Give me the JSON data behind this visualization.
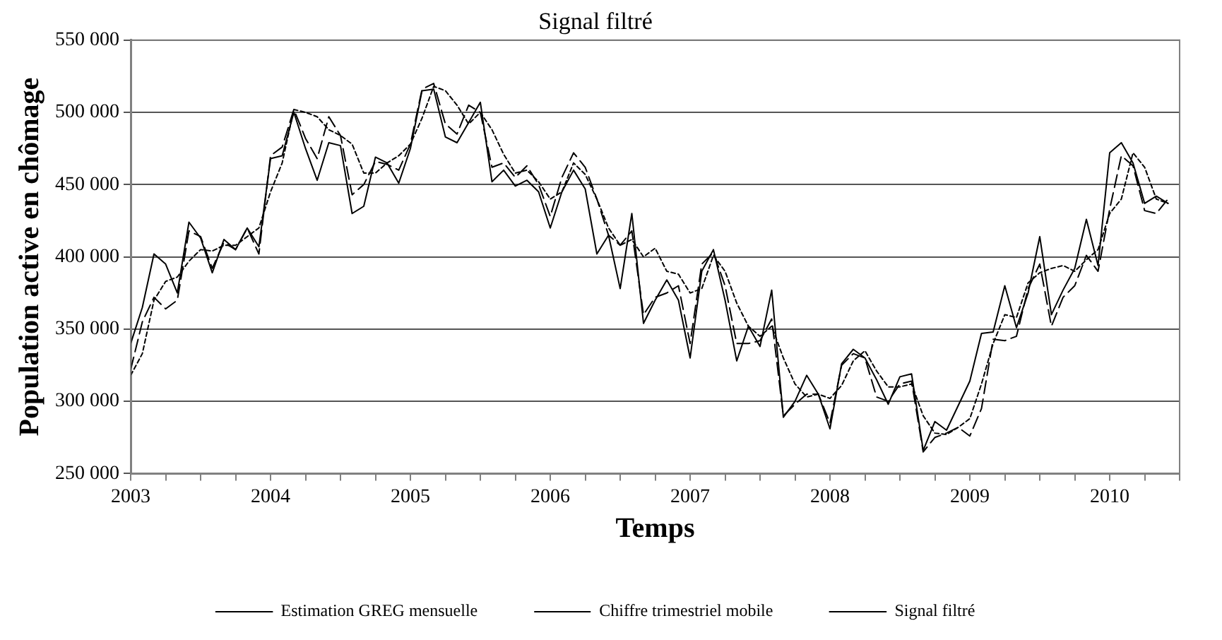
{
  "chart_data": {
    "type": "line",
    "title": "Signal filtré",
    "xlabel": "Temps",
    "ylabel": "Population active en chômage",
    "x": [
      "2003-01",
      "2003-02",
      "2003-03",
      "2003-04",
      "2003-05",
      "2003-06",
      "2003-07",
      "2003-08",
      "2003-09",
      "2003-10",
      "2003-11",
      "2003-12",
      "2004-01",
      "2004-02",
      "2004-03",
      "2004-04",
      "2004-05",
      "2004-06",
      "2004-07",
      "2004-08",
      "2004-09",
      "2004-10",
      "2004-11",
      "2004-12",
      "2005-01",
      "2005-02",
      "2005-03",
      "2005-04",
      "2005-05",
      "2005-06",
      "2005-07",
      "2005-08",
      "2005-09",
      "2005-10",
      "2005-11",
      "2005-12",
      "2006-01",
      "2006-02",
      "2006-03",
      "2006-04",
      "2006-05",
      "2006-06",
      "2006-07",
      "2006-08",
      "2006-09",
      "2006-10",
      "2006-11",
      "2006-12",
      "2007-01",
      "2007-02",
      "2007-03",
      "2007-04",
      "2007-05",
      "2007-06",
      "2007-07",
      "2007-08",
      "2007-09",
      "2007-10",
      "2007-11",
      "2007-12",
      "2008-01",
      "2008-02",
      "2008-03",
      "2008-04",
      "2008-05",
      "2008-06",
      "2008-07",
      "2008-08",
      "2008-09",
      "2008-10",
      "2008-11",
      "2008-12",
      "2009-01",
      "2009-02",
      "2009-03",
      "2009-04",
      "2009-05",
      "2009-06",
      "2009-07",
      "2009-08",
      "2009-09",
      "2009-10",
      "2009-11",
      "2009-12",
      "2010-01",
      "2010-02",
      "2010-03",
      "2010-04",
      "2010-05",
      "2010-06"
    ],
    "series": [
      {
        "name": "Estimation GREG mensuelle",
        "color": "#000000",
        "line_style": "solid",
        "values": [
          340000,
          365000,
          402000,
          395000,
          375000,
          424000,
          413000,
          389000,
          412000,
          405000,
          420000,
          407000,
          468000,
          470000,
          500000,
          475000,
          453000,
          479000,
          477000,
          430000,
          435000,
          469000,
          465000,
          451000,
          475000,
          515000,
          516000,
          483000,
          479000,
          493000,
          507000,
          452000,
          460000,
          449000,
          453000,
          445000,
          420000,
          445000,
          460000,
          447000,
          402000,
          415000,
          378000,
          430000,
          354000,
          370000,
          384000,
          370000,
          330000,
          390000,
          405000,
          370000,
          328000,
          352000,
          338000,
          377000,
          289000,
          300000,
          318000,
          305000,
          281000,
          326000,
          336000,
          330000,
          315000,
          298000,
          317000,
          319000,
          266000,
          286000,
          280000,
          297000,
          314000,
          347000,
          348000,
          380000,
          351000,
          375000,
          414000,
          360000,
          377000,
          392000,
          426000,
          394000,
          472000,
          479000,
          465000,
          437000,
          442000,
          437000
        ]
      },
      {
        "name": "Chiffre trimestriel mobile",
        "color": "#000000",
        "line_style": "dotted",
        "values": [
          318000,
          333000,
          370000,
          383000,
          386000,
          397000,
          405000,
          404000,
          408000,
          408000,
          414000,
          420000,
          445000,
          465000,
          502000,
          500000,
          497000,
          488000,
          484000,
          478000,
          458000,
          458000,
          465000,
          470000,
          478000,
          496000,
          518000,
          515000,
          505000,
          492000,
          500000,
          488000,
          471000,
          458000,
          460000,
          452000,
          440000,
          445000,
          465000,
          457000,
          440000,
          420000,
          408000,
          412000,
          400000,
          406000,
          390000,
          388000,
          375000,
          378000,
          401000,
          390000,
          368000,
          352000,
          345000,
          352000,
          330000,
          312000,
          303000,
          305000,
          302000,
          311000,
          328000,
          335000,
          321000,
          310000,
          310000,
          312000,
          290000,
          278000,
          277000,
          282000,
          288000,
          312000,
          340000,
          360000,
          358000,
          382000,
          389000,
          392000,
          394000,
          390000,
          398000,
          405000,
          430000,
          440000,
          472000,
          462000,
          440000,
          437000
        ]
      },
      {
        "name": "Signal filtré",
        "color": "#000000",
        "line_style": "dashed",
        "values": [
          322000,
          355000,
          372000,
          364000,
          370000,
          418000,
          414000,
          392000,
          410000,
          405000,
          420000,
          402000,
          470000,
          476000,
          502000,
          482000,
          468000,
          497000,
          484000,
          443000,
          450000,
          466000,
          464000,
          460000,
          478000,
          516000,
          520000,
          492000,
          485000,
          505000,
          500000,
          462000,
          465000,
          455000,
          463000,
          450000,
          428000,
          455000,
          472000,
          462000,
          440000,
          415000,
          408000,
          418000,
          360000,
          372000,
          375000,
          380000,
          340000,
          395000,
          403000,
          380000,
          340000,
          340000,
          342000,
          357000,
          290000,
          298000,
          305000,
          305000,
          285000,
          325000,
          333000,
          330000,
          303000,
          300000,
          312000,
          314000,
          265000,
          275000,
          278000,
          282000,
          276000,
          295000,
          343000,
          342000,
          345000,
          378000,
          395000,
          352000,
          372000,
          380000,
          401000,
          390000,
          433000,
          470000,
          463000,
          432000,
          430000,
          440000
        ]
      }
    ],
    "xlim": [
      "2003-01",
      "2010-07"
    ],
    "xticks": [
      "2003",
      {
        "value": "2003-04",
        "label": null
      },
      {
        "value": "2003-07",
        "label": null
      },
      {
        "value": "2003-10",
        "label": null
      },
      "2004",
      {
        "value": "2004-04",
        "label": null
      },
      {
        "value": "2004-07",
        "label": null
      },
      {
        "value": "2004-10",
        "label": null
      },
      "2005",
      {
        "value": "2005-04",
        "label": null
      },
      {
        "value": "2005-07",
        "label": null
      },
      {
        "value": "2005-10",
        "label": null
      },
      "2006",
      {
        "value": "2006-04",
        "label": null
      },
      {
        "value": "2006-07",
        "label": null
      },
      {
        "value": "2006-10",
        "label": null
      },
      "2007",
      {
        "value": "2007-04",
        "label": null
      },
      {
        "value": "2007-07",
        "label": null
      },
      {
        "value": "2007-10",
        "label": null
      },
      "2008",
      {
        "value": "2008-04",
        "label": null
      },
      {
        "value": "2008-07",
        "label": null
      },
      {
        "value": "2008-10",
        "label": null
      },
      "2009",
      {
        "value": "2009-04",
        "label": null
      },
      {
        "value": "2009-07",
        "label": null
      },
      {
        "value": "2009-10",
        "label": null
      },
      "2010",
      {
        "value": "2010-04",
        "label": null
      },
      {
        "value": "2010-07",
        "label": null
      }
    ],
    "ylim": [
      250000,
      550000
    ],
    "yticks": [
      {
        "value": 250000,
        "label": "250 000"
      },
      {
        "value": 300000,
        "label": "300 000"
      },
      {
        "value": 350000,
        "label": "350 000"
      },
      {
        "value": 400000,
        "label": "400 000"
      },
      {
        "value": 450000,
        "label": "450 000"
      },
      {
        "value": 500000,
        "label": "500 000"
      },
      {
        "value": 550000,
        "label": "550 000"
      }
    ],
    "grid": "y",
    "legend": "bottom",
    "marker": "none"
  }
}
